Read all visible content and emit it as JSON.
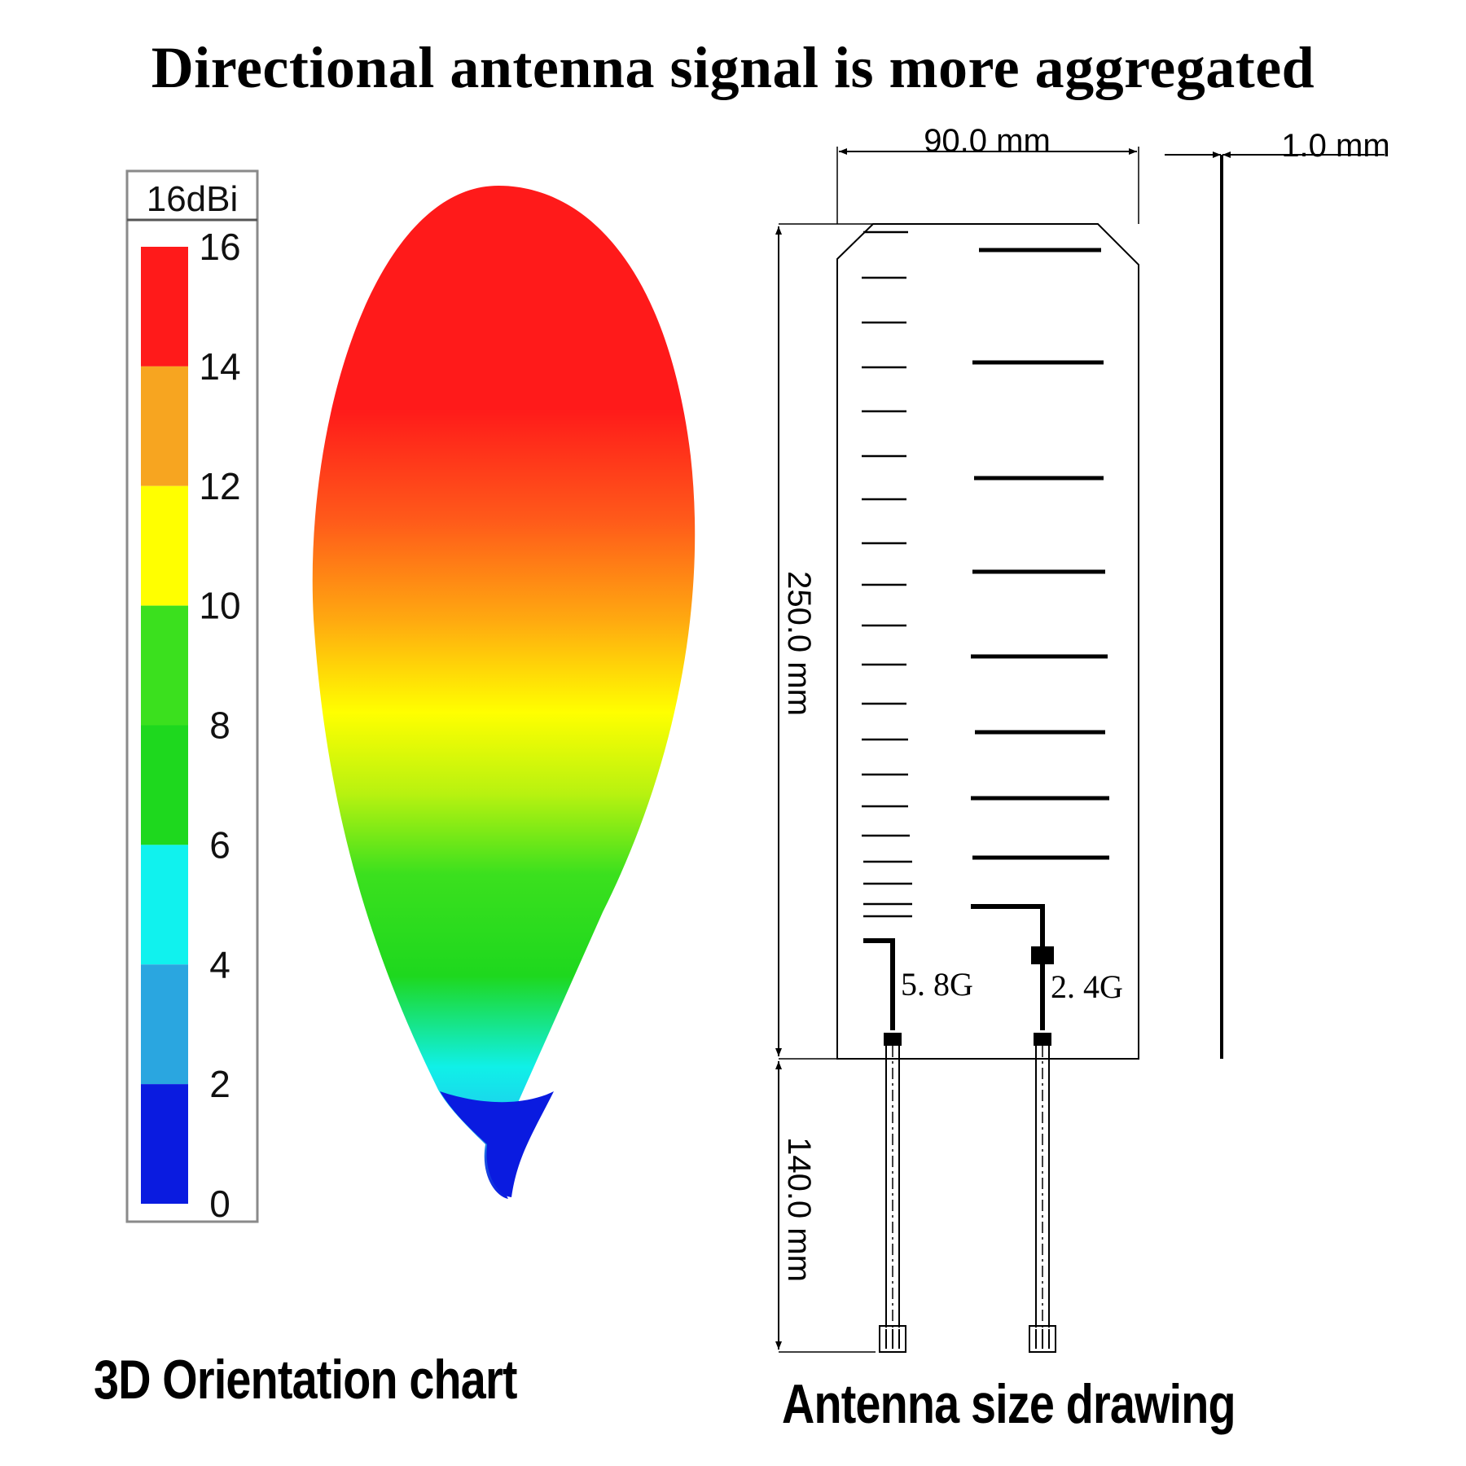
{
  "headline": "Directional antenna signal is more aggregated",
  "legend": {
    "title": "16dBi",
    "ticks": [
      "16",
      "14",
      "12",
      "10",
      "8",
      "6",
      "4",
      "2",
      "0"
    ],
    "bands": [
      {
        "from": 14,
        "to": 16,
        "color": "#ff1a1a"
      },
      {
        "from": 12,
        "to": 14,
        "color": "#f7a520"
      },
      {
        "from": 10,
        "to": 12,
        "color": "#ffff00"
      },
      {
        "from": 8,
        "to": 10,
        "color": "#3be01e"
      },
      {
        "from": 6,
        "to": 8,
        "color": "#1ed81e"
      },
      {
        "from": 4,
        "to": 6,
        "color": "#10f2ee"
      },
      {
        "from": 2,
        "to": 4,
        "color": "#2aa6e0"
      },
      {
        "from": 0,
        "to": 2,
        "color": "#0a1be0"
      }
    ]
  },
  "drawing": {
    "width_label": "90.0 mm",
    "thickness_label": "1.0 mm",
    "height_label": "250.0 mm",
    "cable_label": "140.0 mm",
    "port_58": "5. 8G",
    "port_24": "2. 4G"
  },
  "captions": {
    "left": "3D Orientation chart",
    "right": "Antenna size drawing"
  }
}
